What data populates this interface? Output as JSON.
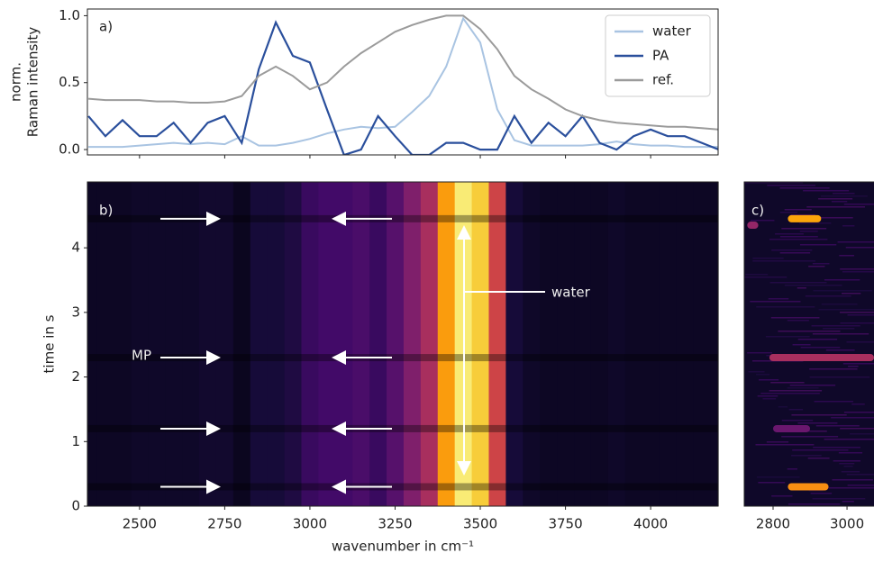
{
  "chart_data": [
    {
      "type": "line",
      "label": "a)",
      "ylabel": [
        "norm.",
        "Raman intensity"
      ],
      "x": [
        2350,
        2400,
        2450,
        2500,
        2550,
        2600,
        2650,
        2700,
        2750,
        2800,
        2850,
        2900,
        2950,
        3000,
        3050,
        3100,
        3150,
        3200,
        3250,
        3300,
        3350,
        3400,
        3450,
        3500,
        3550,
        3600,
        3650,
        3700,
        3750,
        3800,
        3850,
        3900,
        3950,
        4000,
        4050,
        4100,
        4150,
        4200
      ],
      "series": [
        {
          "name": "water",
          "color": "#a9c4e2",
          "values": [
            0.02,
            0.02,
            0.02,
            0.03,
            0.04,
            0.05,
            0.04,
            0.05,
            0.04,
            0.1,
            0.03,
            0.03,
            0.05,
            0.08,
            0.12,
            0.15,
            0.17,
            0.16,
            0.17,
            0.28,
            0.4,
            0.62,
            0.98,
            0.8,
            0.3,
            0.07,
            0.03,
            0.03,
            0.03,
            0.03,
            0.04,
            0.06,
            0.04,
            0.03,
            0.03,
            0.02,
            0.02,
            0.02
          ]
        },
        {
          "name": "PA",
          "color": "#2a4f9c",
          "values": [
            0.25,
            0.1,
            0.22,
            0.1,
            0.1,
            0.2,
            0.05,
            0.2,
            0.25,
            0.05,
            0.6,
            0.95,
            0.7,
            0.65,
            0.3,
            -0.04,
            0.0,
            0.25,
            0.1,
            -0.04,
            -0.04,
            0.05,
            0.05,
            0.0,
            0.0,
            0.25,
            0.05,
            0.2,
            0.1,
            0.25,
            0.05,
            0.0,
            0.1,
            0.15,
            0.1,
            0.1,
            0.05,
            0.0
          ]
        },
        {
          "name": "ref.",
          "color": "#9b9b9b",
          "values": [
            0.38,
            0.37,
            0.37,
            0.37,
            0.36,
            0.36,
            0.35,
            0.35,
            0.36,
            0.4,
            0.55,
            0.62,
            0.55,
            0.45,
            0.5,
            0.62,
            0.72,
            0.8,
            0.88,
            0.93,
            0.97,
            1.0,
            1.0,
            0.9,
            0.75,
            0.55,
            0.45,
            0.38,
            0.3,
            0.25,
            0.22,
            0.2,
            0.19,
            0.18,
            0.17,
            0.17,
            0.16,
            0.15
          ]
        }
      ],
      "xlim": [
        2347,
        4198
      ],
      "xticks": [
        2500,
        2750,
        3000,
        3250,
        3500,
        3750,
        4000
      ],
      "ylim": [
        -0.04,
        1.05
      ],
      "yticks": [
        {
          "value": 0,
          "label": "0.0"
        },
        0.5,
        {
          "value": 1,
          "label": "1.0"
        }
      ],
      "legend": "upper right"
    },
    {
      "type": "heatmap",
      "label": "b)",
      "xlabel": "wavenumber in cm⁻¹",
      "ylabel": "time in s",
      "colormap": "inferno",
      "x": [
        2350,
        2400,
        2450,
        2500,
        2550,
        2600,
        2650,
        2700,
        2750,
        2800,
        2850,
        2900,
        2950,
        3000,
        3050,
        3100,
        3150,
        3200,
        3250,
        3300,
        3350,
        3400,
        3450,
        3500,
        3550,
        3600,
        3650,
        3700,
        3750,
        3800,
        3850,
        3900,
        3950,
        4000,
        4050,
        4100,
        4150,
        4200
      ],
      "values": [
        0.06,
        0.06,
        0.06,
        0.07,
        0.07,
        0.07,
        0.07,
        0.08,
        0.08,
        0.05,
        0.1,
        0.1,
        0.12,
        0.18,
        0.2,
        0.2,
        0.22,
        0.18,
        0.25,
        0.35,
        0.45,
        0.78,
        0.95,
        0.88,
        0.55,
        0.1,
        0.07,
        0.06,
        0.06,
        0.06,
        0.06,
        0.07,
        0.06,
        0.06,
        0.06,
        0.06,
        0.06,
        0.06
      ],
      "mp_times": [
        0.3,
        1.2,
        2.3,
        4.45
      ],
      "mp_label": "MP",
      "water_label": "water",
      "xlim": [
        2347,
        4198
      ],
      "xticks": [
        2500,
        2750,
        3000,
        3250,
        3500,
        3750,
        4000
      ],
      "ylim": [
        0,
        5.02
      ],
      "yticks": [
        0,
        1,
        2,
        3,
        4
      ]
    },
    {
      "type": "streaks",
      "label": "c)",
      "colormap": "inferno",
      "streaks": [
        {
          "t": 4.45,
          "x": [
            2840,
            2930
          ],
          "intensity": 0.8
        },
        {
          "t": 4.35,
          "x": [
            2730,
            2760
          ],
          "intensity": 0.4
        },
        {
          "t": 2.3,
          "x": [
            2790,
            3073
          ],
          "intensity": 0.45
        },
        {
          "t": 1.2,
          "x": [
            2800,
            2900
          ],
          "intensity": 0.3
        },
        {
          "t": 0.3,
          "x": [
            2840,
            2950
          ],
          "intensity": 0.75
        }
      ],
      "xlim": [
        2722,
        3073
      ],
      "xticks": [
        2800,
        3000
      ],
      "ylim": [
        0,
        5.02
      ]
    }
  ]
}
